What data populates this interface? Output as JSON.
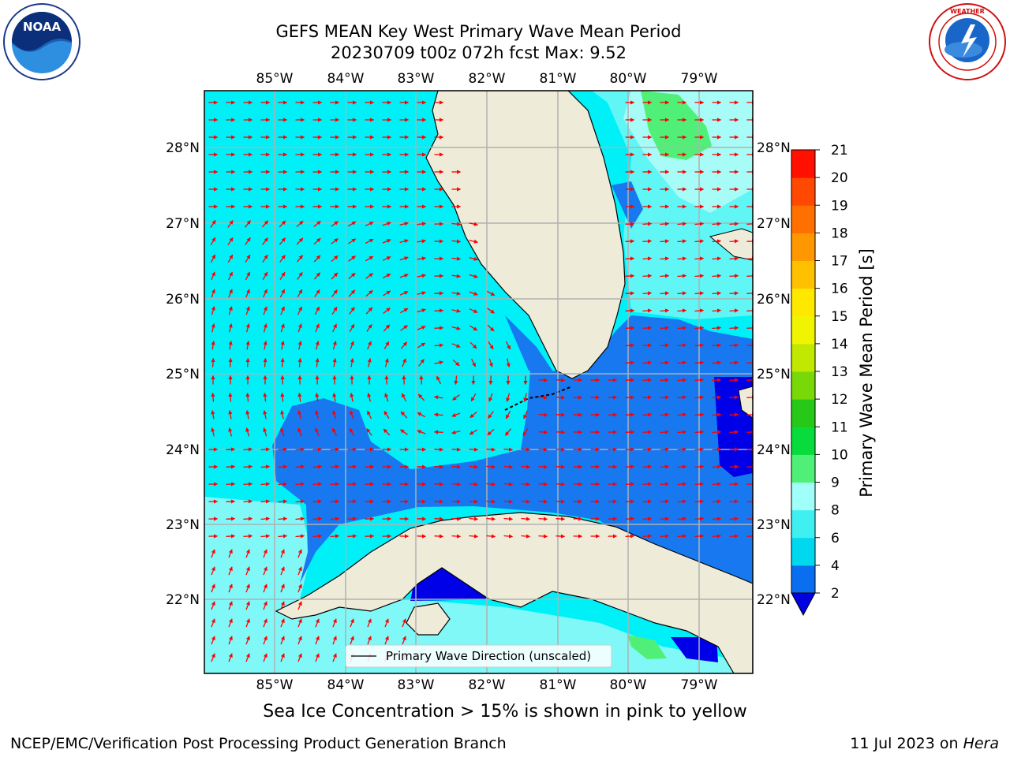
{
  "header": {
    "title_line1": "GEFS MEAN Key West Primary Wave Mean Period",
    "title_line2": "20230709 t00z 072h fcst   Max: 9.52"
  },
  "logos": {
    "noaa": {
      "text": "NOAA",
      "ring_text": "NATIONAL OCEANIC AND ATMOSPHERIC ADMINISTRATION · U.S. DEPARTMENT OF COMMERCE"
    },
    "nws": {
      "ring_text": "NATIONAL WEATHER SERVICE"
    }
  },
  "map": {
    "lon_ticks": [
      "85°W",
      "84°W",
      "83°W",
      "82°W",
      "81°W",
      "80°W",
      "79°W"
    ],
    "lat_ticks": [
      "28°N",
      "27°N",
      "26°N",
      "25°N",
      "24°N",
      "23°N",
      "22°N"
    ],
    "legend_label": "Primary Wave Direction (unscaled)",
    "colors": {
      "land": "#eeecd9",
      "grid": "#b0b0b0",
      "arrow": "#ff0000"
    }
  },
  "colorbar": {
    "label": "Primary Wave Mean Period [s]",
    "ticks": [
      "2",
      "4",
      "6",
      "8",
      "9",
      "10",
      "11",
      "12",
      "13",
      "14",
      "15",
      "16",
      "17",
      "18",
      "19",
      "20",
      "21"
    ],
    "bands": [
      "#0a6ef0",
      "#00d8f0",
      "#40f0f0",
      "#a0fff8",
      "#50f078",
      "#08dc3c",
      "#28c818",
      "#78d808",
      "#c0e800",
      "#f0f400",
      "#ffe800",
      "#ffc000",
      "#ff9800",
      "#ff7000",
      "#ff4800",
      "#ff1000"
    ],
    "under_color": "#0000e0"
  },
  "caption": "Sea Ice Concentration > 15% is shown in pink to yellow",
  "footer": {
    "left": "NCEP/EMC/Verification Post Processing Product Generation Branch",
    "date": "11 Jul 2023 on ",
    "host": "Hera"
  }
}
